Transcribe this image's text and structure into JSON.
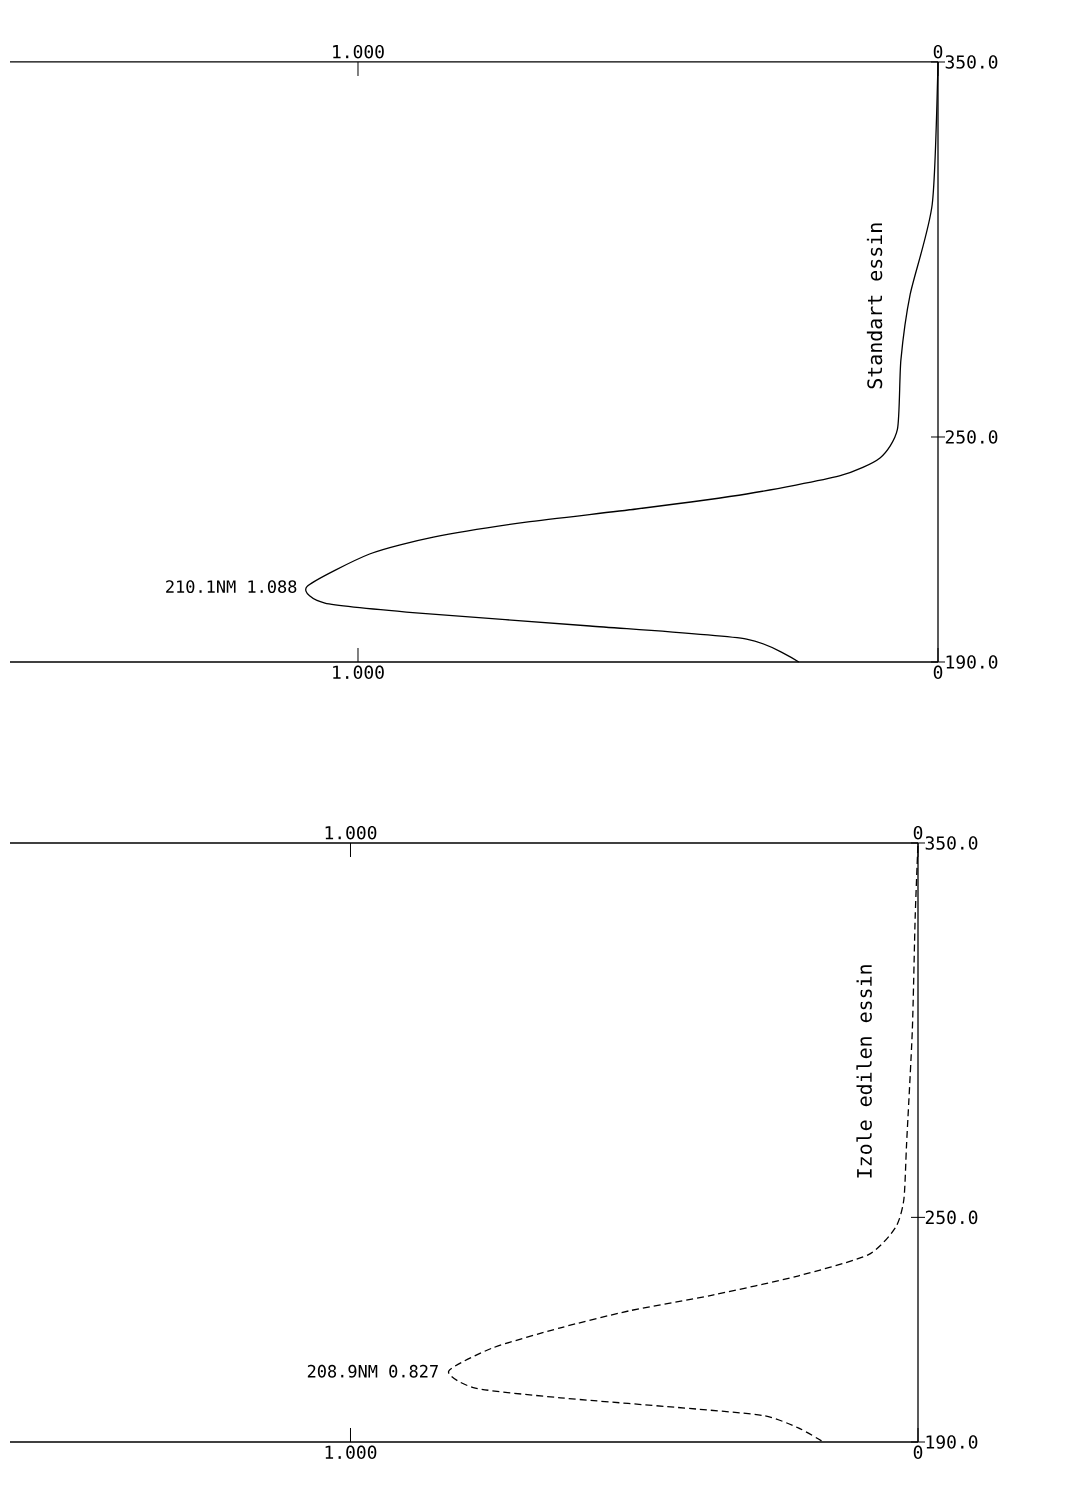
{
  "chart_data": [
    {
      "type": "line",
      "xlim": [
        1.6,
        0
      ],
      "ylim": [
        190,
        350
      ],
      "x2lim": [
        1.6,
        0
      ],
      "xticks": [
        {
          "value": 1,
          "label": "1.000"
        },
        0
      ],
      "x2ticks": [
        {
          "value": 1,
          "label": "1.000"
        },
        0
      ],
      "yticks": [
        {
          "value": 190,
          "label": "190.0"
        },
        {
          "value": 250,
          "label": "250.0"
        },
        {
          "value": 350,
          "label": "350.0"
        }
      ],
      "grid": false,
      "series": [
        {
          "name": "Standart essin",
          "color": "#000000",
          "line_style": "solid",
          "x": [
            0.24,
            0.33,
            0.6,
            0.9,
            1.057,
            1.088,
            0.98,
            0.87,
            0.71,
            0.52,
            0.33,
            0.17,
            0.1,
            0.07,
            0.064,
            0.048,
            0.01,
            0.0
          ],
          "values": [
            190,
            196.1,
            199.6,
            203.1,
            205.7,
            210.1,
            218.8,
            223.3,
            227.3,
            230.8,
            234.8,
            239.6,
            244.4,
            252,
            270.5,
            288,
            312,
            350
          ]
        }
      ],
      "annotations": [
        {
          "text": "210.1NM  1.088",
          "x": 1.088,
          "y": 210.1
        }
      ]
    },
    {
      "type": "line",
      "xlim": [
        1.6,
        0
      ],
      "ylim": [
        190,
        350
      ],
      "x2lim": [
        1.6,
        0
      ],
      "xticks": [
        {
          "value": 1,
          "label": "1.000"
        },
        0
      ],
      "x2ticks": [
        {
          "value": 1,
          "label": "1.000"
        },
        0
      ],
      "yticks": [
        {
          "value": 190,
          "label": "190.0"
        },
        {
          "value": 250,
          "label": "250.0"
        },
        {
          "value": 350,
          "label": "350.0"
        }
      ],
      "grid": false,
      "series": [
        {
          "name": "Izole edilen essin",
          "color": "#000000",
          "line_style": "dashed",
          "x": [
            0.17,
            0.21,
            0.27,
            0.39,
            0.63,
            0.78,
            0.827,
            0.75,
            0.63,
            0.51,
            0.36,
            0.21,
            0.088,
            0.04,
            0.025,
            0.02,
            0.01,
            0.005,
            0.0
          ],
          "values": [
            190.3,
            193.7,
            197,
            198.8,
            201.8,
            204.4,
            208.9,
            215.1,
            220.5,
            225,
            229.3,
            234.4,
            240,
            247.2,
            254.7,
            270,
            300,
            330,
            350
          ]
        }
      ],
      "annotations": [
        {
          "text": "208.9NM  0.827",
          "x": 0.827,
          "y": 208.9
        }
      ]
    }
  ]
}
